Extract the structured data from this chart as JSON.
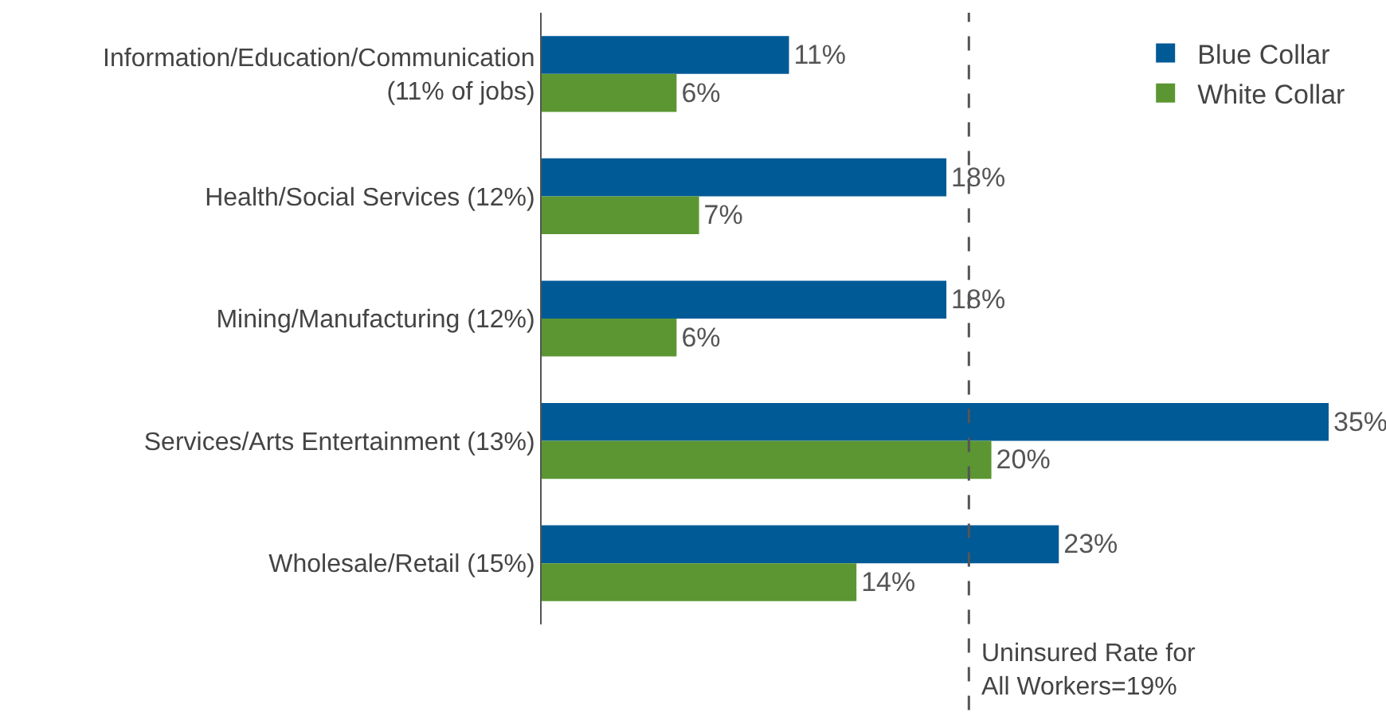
{
  "chart_data": {
    "type": "bar",
    "orientation": "horizontal",
    "categories": [
      "Information/Education/Communication\n(11% of jobs)",
      "Health/Social Services (12%)",
      "Mining/Manufacturing (12%)",
      "Services/Arts Entertainment (13%)",
      "Wholesale/Retail (15%)"
    ],
    "series": [
      {
        "name": "Blue Collar",
        "color": "#005a96",
        "values": [
          11,
          18,
          18,
          35,
          23
        ],
        "value_labels": [
          "11%",
          "18%",
          "18%",
          "35%",
          "23%"
        ]
      },
      {
        "name": "White Collar",
        "color": "#5b9632",
        "values": [
          6,
          7,
          6,
          20,
          14
        ],
        "value_labels": [
          "6%",
          "7%",
          "6%",
          "20%",
          "14%"
        ]
      }
    ],
    "ref_lines": [
      {
        "axis": "x",
        "value": 19,
        "label": "Uninsured Rate for\nAll Workers=19%",
        "line_style": "dashed",
        "color": "#555555"
      }
    ],
    "legend": "top right",
    "grid": false
  }
}
